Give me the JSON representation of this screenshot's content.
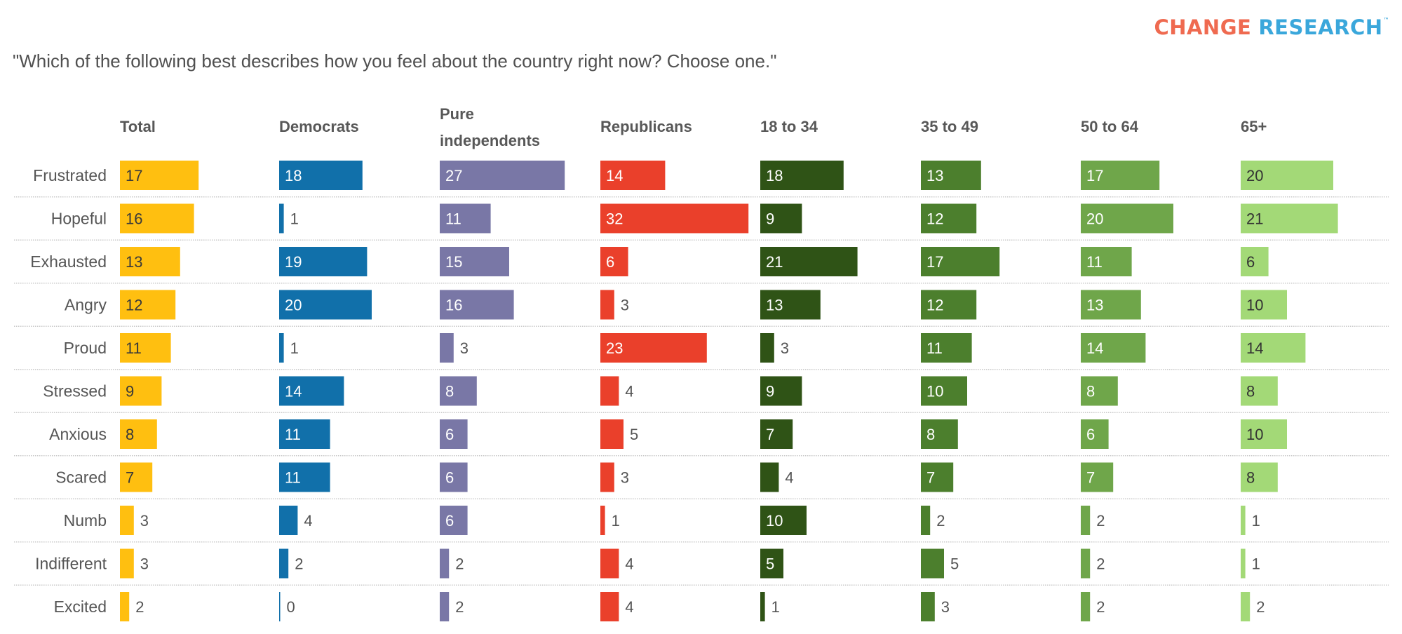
{
  "logo": {
    "part1": "CHANGE",
    "part2": "RESEARCH",
    "tm": "™",
    "color1": "#ef6a50",
    "color2": "#3aa7db"
  },
  "question": "\"Which of the following best describes how you feel about the country right now? Choose one.\"",
  "chart_data": {
    "type": "bar",
    "orientation": "horizontal-small-multiples",
    "title": "\"Which of the following best describes how you feel about the country right now? Choose one.\"",
    "unit": "percent",
    "categories": [
      "Frustrated",
      "Hopeful",
      "Exhausted",
      "Angry",
      "Proud",
      "Stressed",
      "Anxious",
      "Scared",
      "Numb",
      "Indifferent",
      "Excited"
    ],
    "series": [
      {
        "name": "Total",
        "header_lines": [
          "Total"
        ],
        "color": "#ffbf10",
        "text_color": "#3a3a3a",
        "values": [
          17,
          16,
          13,
          12,
          11,
          9,
          8,
          7,
          3,
          3,
          2
        ]
      },
      {
        "name": "Democrats",
        "header_lines": [
          "Democrats"
        ],
        "color": "#1170aa",
        "text_color": "#ffffff",
        "values": [
          18,
          1,
          19,
          20,
          1,
          14,
          11,
          11,
          4,
          2,
          0
        ]
      },
      {
        "name": "Pure independents",
        "header_lines": [
          "Pure",
          "independents"
        ],
        "color": "#7977a6",
        "text_color": "#ffffff",
        "values": [
          27,
          11,
          15,
          16,
          3,
          8,
          6,
          6,
          6,
          2,
          2
        ]
      },
      {
        "name": "Republicans",
        "header_lines": [
          "Republicans"
        ],
        "color": "#ea402b",
        "text_color": "#ffffff",
        "values": [
          14,
          32,
          6,
          3,
          23,
          4,
          5,
          3,
          1,
          4,
          4
        ]
      },
      {
        "name": "18 to 34",
        "header_lines": [
          "18 to 34"
        ],
        "color": "#2f5316",
        "text_color": "#ffffff",
        "values": [
          18,
          9,
          21,
          13,
          3,
          9,
          7,
          4,
          10,
          5,
          1
        ]
      },
      {
        "name": "35 to 49",
        "header_lines": [
          "35 to 49"
        ],
        "color": "#4c7f2d",
        "text_color": "#ffffff",
        "values": [
          13,
          12,
          17,
          12,
          11,
          10,
          8,
          7,
          2,
          5,
          3
        ]
      },
      {
        "name": "50 to 64",
        "header_lines": [
          "50 to 64"
        ],
        "color": "#6fa64a",
        "text_color": "#ffffff",
        "values": [
          17,
          20,
          11,
          13,
          14,
          8,
          6,
          7,
          2,
          2,
          2
        ]
      },
      {
        "name": "65+",
        "header_lines": [
          "65+"
        ],
        "color": "#a3d977",
        "text_color": "#333333",
        "values": [
          20,
          21,
          6,
          10,
          14,
          8,
          10,
          8,
          1,
          1,
          2
        ]
      }
    ],
    "xlabel": "",
    "ylabel": "",
    "grid": false,
    "legend": "column headers"
  }
}
